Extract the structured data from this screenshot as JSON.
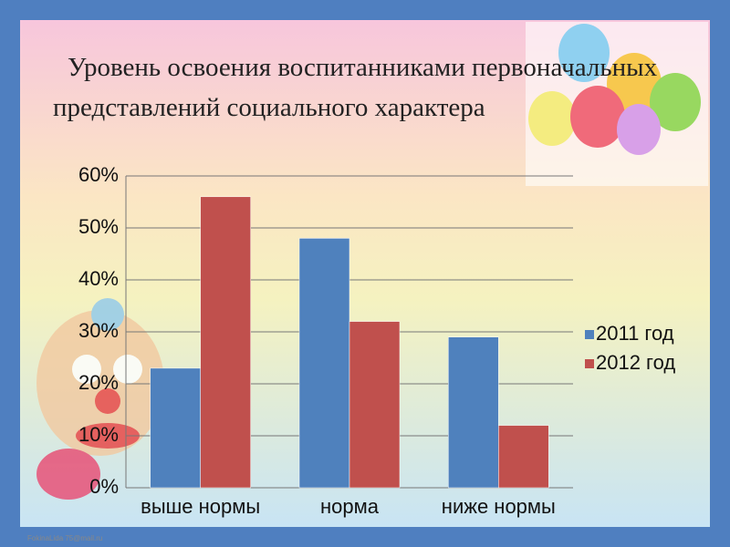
{
  "chart_data": {
    "type": "bar",
    "title": "Уровень освоения воспитанниками первоначальных представлений социального характера",
    "categories": [
      "выше нормы",
      "норма",
      "ниже нормы"
    ],
    "series": [
      {
        "name": "2011 год",
        "color": "#4f81bd",
        "values": [
          23,
          48,
          29
        ]
      },
      {
        "name": "2012 год",
        "color": "#c0504d",
        "values": [
          56,
          32,
          12
        ]
      }
    ],
    "ylim": [
      0,
      60
    ],
    "yticks": [
      {
        "value": 0,
        "label": "0%"
      },
      {
        "value": 10,
        "label": "10%"
      },
      {
        "value": 20,
        "label": "20%"
      },
      {
        "value": 30,
        "label": "30%"
      },
      {
        "value": 40,
        "label": "40%"
      },
      {
        "value": 50,
        "label": "50%"
      },
      {
        "value": 60,
        "label": "60%"
      }
    ],
    "grid": true,
    "legend": "right"
  },
  "footer": "FokinaLida 75@mail.ru"
}
